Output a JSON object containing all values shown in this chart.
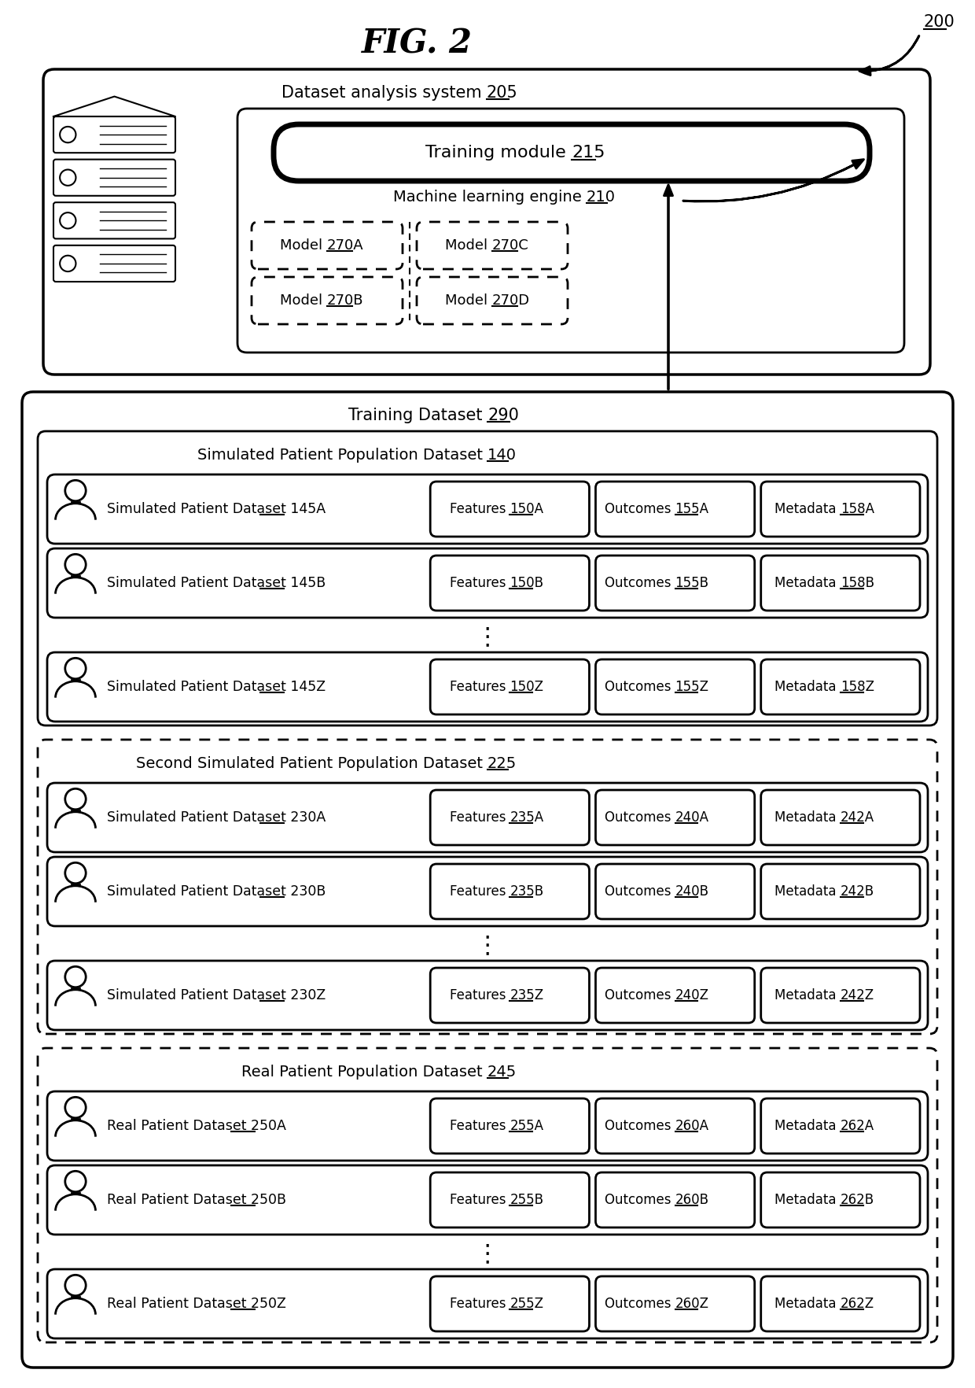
{
  "fig_title": "FIG. 2",
  "ref_200": "200",
  "bg_color": "#ffffff",
  "top_box": {
    "label_plain": "Dataset analysis system ",
    "label_ref": "205",
    "inner_label_plain": "Machine learning engine ",
    "inner_label_ref": "210",
    "training_module_plain": "Training module ",
    "training_module_ref": "215",
    "models": [
      {
        "label_plain": "Model ",
        "label_ref": "270A",
        "col": 0,
        "row": 0
      },
      {
        "label_plain": "Model ",
        "label_ref": "270C",
        "col": 1,
        "row": 0
      },
      {
        "label_plain": "Model ",
        "label_ref": "270B",
        "col": 0,
        "row": 1
      },
      {
        "label_plain": "Model ",
        "label_ref": "270D",
        "col": 1,
        "row": 1
      }
    ]
  },
  "training_dataset_plain": "Training Dataset ",
  "training_dataset_ref": "290",
  "sections": [
    {
      "title_plain": "Simulated Patient Population Dataset ",
      "title_ref": "140",
      "border": "solid",
      "rows": [
        {
          "dataset_plain": "Simulated Patient Dataset ",
          "dataset_ref": "145A",
          "features_plain": "Features ",
          "features_ref": "150A",
          "outcomes_plain": "Outcomes ",
          "outcomes_ref": "155A",
          "metadata_plain": "Metadata ",
          "metadata_ref": "158A"
        },
        {
          "dataset_plain": "Simulated Patient Dataset ",
          "dataset_ref": "145B",
          "features_plain": "Features ",
          "features_ref": "150B",
          "outcomes_plain": "Outcomes ",
          "outcomes_ref": "155B",
          "metadata_plain": "Metadata ",
          "metadata_ref": "158B"
        },
        {
          "dataset_plain": "Simulated Patient Dataset ",
          "dataset_ref": "145Z",
          "features_plain": "Features ",
          "features_ref": "150Z",
          "outcomes_plain": "Outcomes ",
          "outcomes_ref": "155Z",
          "metadata_plain": "Metadata ",
          "metadata_ref": "158Z"
        }
      ]
    },
    {
      "title_plain": "Second Simulated Patient Population Dataset ",
      "title_ref": "225",
      "border": "dashed",
      "rows": [
        {
          "dataset_plain": "Simulated Patient Dataset ",
          "dataset_ref": "230A",
          "features_plain": "Features ",
          "features_ref": "235A",
          "outcomes_plain": "Outcomes ",
          "outcomes_ref": "240A",
          "metadata_plain": "Metadata ",
          "metadata_ref": "242A"
        },
        {
          "dataset_plain": "Simulated Patient Dataset ",
          "dataset_ref": "230B",
          "features_plain": "Features ",
          "features_ref": "235B",
          "outcomes_plain": "Outcomes ",
          "outcomes_ref": "240B",
          "metadata_plain": "Metadata ",
          "metadata_ref": "242B"
        },
        {
          "dataset_plain": "Simulated Patient Dataset ",
          "dataset_ref": "230Z",
          "features_plain": "Features ",
          "features_ref": "235Z",
          "outcomes_plain": "Outcomes ",
          "outcomes_ref": "240Z",
          "metadata_plain": "Metadata ",
          "metadata_ref": "242Z"
        }
      ]
    },
    {
      "title_plain": "Real Patient Population Dataset ",
      "title_ref": "245",
      "border": "dashed",
      "rows": [
        {
          "dataset_plain": "Real Patient Dataset ",
          "dataset_ref": "250A",
          "features_plain": "Features ",
          "features_ref": "255A",
          "outcomes_plain": "Outcomes ",
          "outcomes_ref": "260A",
          "metadata_plain": "Metadata ",
          "metadata_ref": "262A"
        },
        {
          "dataset_plain": "Real Patient Dataset ",
          "dataset_ref": "250B",
          "features_plain": "Features ",
          "features_ref": "255B",
          "outcomes_plain": "Outcomes ",
          "outcomes_ref": "260B",
          "metadata_plain": "Metadata ",
          "metadata_ref": "262B"
        },
        {
          "dataset_plain": "Real Patient Dataset ",
          "dataset_ref": "250Z",
          "features_plain": "Features ",
          "features_ref": "255Z",
          "outcomes_plain": "Outcomes ",
          "outcomes_ref": "260Z",
          "metadata_plain": "Metadata ",
          "metadata_ref": "262Z"
        }
      ]
    }
  ]
}
